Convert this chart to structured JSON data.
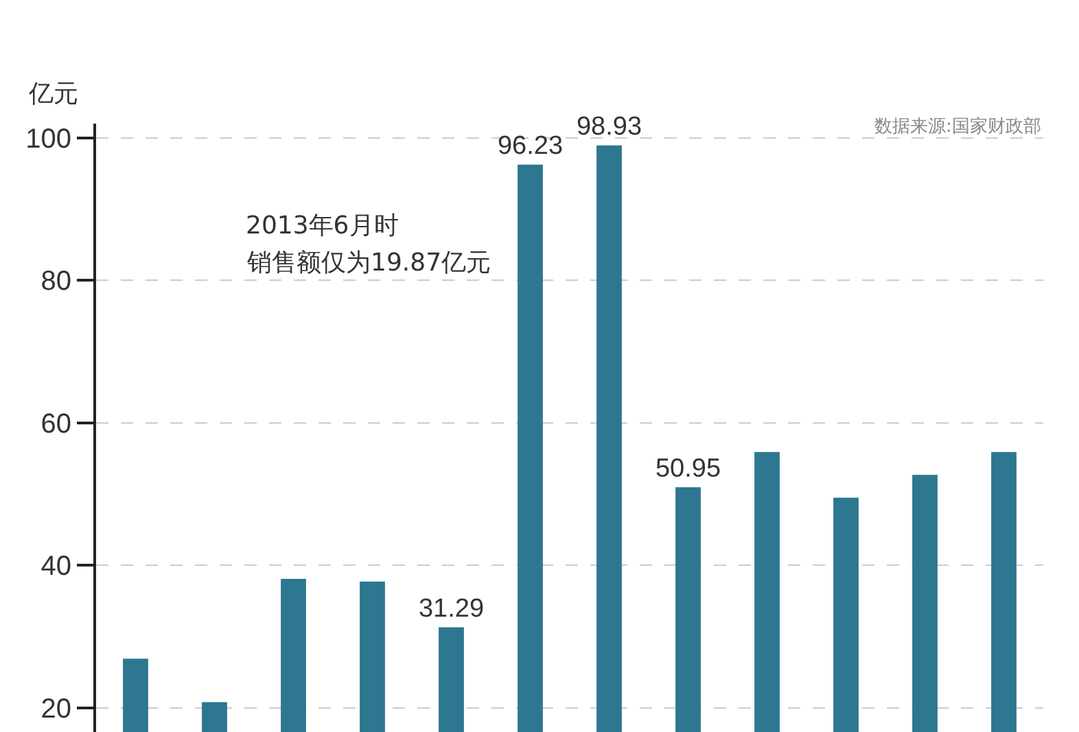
{
  "chart_data": {
    "type": "bar",
    "ylabel": "亿元",
    "categories": [
      null,
      null,
      null,
      null,
      null,
      null,
      null,
      null,
      null,
      null,
      null,
      null
    ],
    "values": [
      26.9,
      20.8,
      38.1,
      37.7,
      31.29,
      96.23,
      98.93,
      50.95,
      55.9,
      49.5,
      52.7,
      55.9
    ],
    "value_labels": [
      null,
      null,
      null,
      null,
      "31.29",
      "96.23",
      "98.93",
      "50.95",
      null,
      null,
      null,
      null
    ],
    "color": "#2e7791",
    "ylim": [
      16.6,
      102
    ],
    "yticks": [
      20,
      40,
      60,
      80,
      100
    ],
    "grid": "y",
    "legend": false,
    "tick_labels": "y",
    "annotations": [
      "2013年6月时",
      "销售额仅为19.87亿元",
      "数据来源:国家财政部"
    ]
  }
}
